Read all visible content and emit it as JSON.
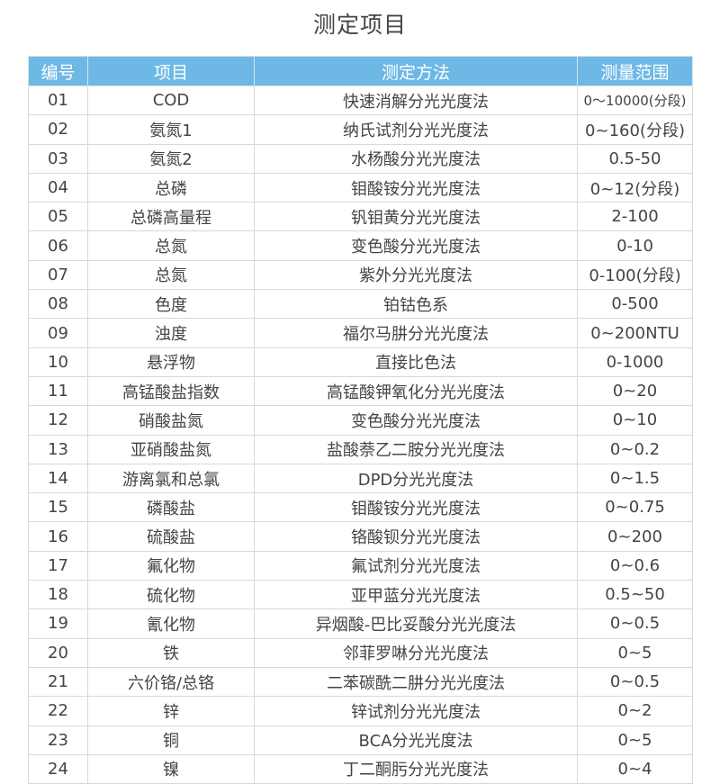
{
  "title": "测定项目",
  "headers": [
    "编号",
    "项目",
    "测定方法",
    "测量范围"
  ],
  "rows": [
    [
      "01",
      "COD",
      "快速消解分光光度法",
      "0～10000(分段)"
    ],
    [
      "02",
      "氨氮1",
      "纳氏试剂分光光度法",
      "0~160(分段)"
    ],
    [
      "03",
      "氨氮2",
      "水杨酸分光光度法",
      "0.5-50"
    ],
    [
      "04",
      "总磷",
      "钼酸铵分光光度法",
      "0~12(分段)"
    ],
    [
      "05",
      "总磷高量程",
      "钒钼黄分光光度法",
      "2-100"
    ],
    [
      "06",
      "总氮",
      "变色酸分光光度法",
      "0-10"
    ],
    [
      "07",
      "总氮",
      "紫外分光光度法",
      "0-100(分段)"
    ],
    [
      "08",
      "色度",
      "铂钴色系",
      "0-500"
    ],
    [
      "09",
      "浊度",
      "福尔马肼分光光度法",
      "0~200NTU"
    ],
    [
      "10",
      "悬浮物",
      "直接比色法",
      "0-1000"
    ],
    [
      "11",
      "高锰酸盐指数",
      "高锰酸钾氧化分光光度法",
      "0~20"
    ],
    [
      "12",
      "硝酸盐氮",
      "变色酸分光光度法",
      "0~10"
    ],
    [
      "13",
      "亚硝酸盐氮",
      "盐酸萘乙二胺分光光度法",
      "0~0.2"
    ],
    [
      "14",
      "游离氯和总氯",
      "DPD分光光度法",
      "0~1.5"
    ],
    [
      "15",
      "磷酸盐",
      "钼酸铵分光光度法",
      "0~0.75"
    ],
    [
      "16",
      "硫酸盐",
      "铬酸钡分光光度法",
      "0~200"
    ],
    [
      "17",
      "氟化物",
      "氟试剂分光光度法",
      "0~0.6"
    ],
    [
      "18",
      "硫化物",
      "亚甲蓝分光光度法",
      "0.5~50"
    ],
    [
      "19",
      "氰化物",
      "异烟酸-巴比妥酸分光光度法",
      "0~0.5"
    ],
    [
      "20",
      "铁",
      "邻菲罗啉分光光度法",
      "0~5"
    ],
    [
      "21",
      "六价铬/总铬",
      "二苯碳酰二肼分光光度法",
      "0~0.5"
    ],
    [
      "22",
      "锌",
      "锌试剂分光光度法",
      "0~2"
    ],
    [
      "23",
      "铜",
      "BCA分光光度法",
      "0~5"
    ],
    [
      "24",
      "镍",
      "丁二酮肟分光光度法",
      "0~4"
    ]
  ],
  "colors": {
    "header_bg": "#6eb8e6",
    "header_text": "#ffffff",
    "text": "#444444",
    "border": "#d8d8d8"
  }
}
